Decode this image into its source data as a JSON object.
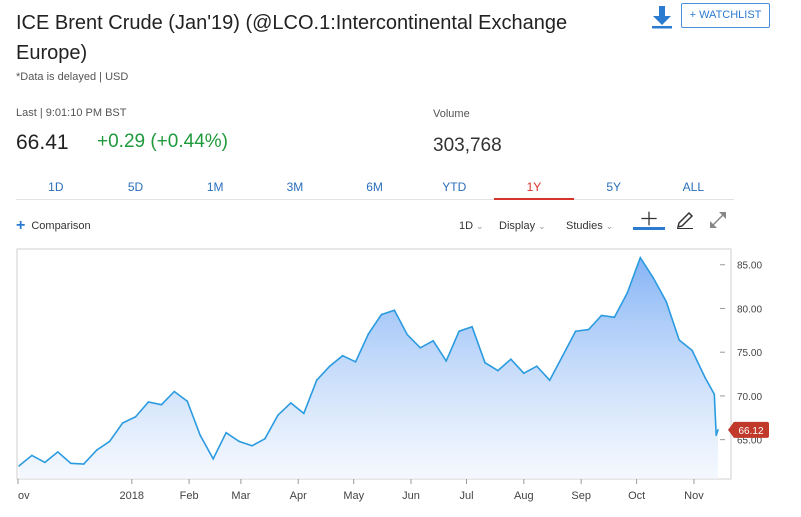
{
  "header": {
    "title": "ICE Brent Crude (Jan'19) (@LCO.1:Intercontinental Exchange Europe)",
    "watchlist_label": "+ WATCHLIST",
    "delayed_note": "*Data is delayed | USD"
  },
  "quote": {
    "last_label": "Last | 9:01:10 PM BST",
    "price": "66.41",
    "change": "+0.29 (+0.44%)",
    "volume_label": "Volume",
    "volume": "303,768"
  },
  "colors": {
    "accent": "#2b7bd1",
    "up": "#1f9a3c",
    "active_tab": "#d6332a",
    "line": "#2b9be0",
    "last_badge": "#c0392b"
  },
  "tabs": [
    {
      "label": "1D"
    },
    {
      "label": "5D"
    },
    {
      "label": "1M"
    },
    {
      "label": "3M"
    },
    {
      "label": "6M"
    },
    {
      "label": "YTD"
    },
    {
      "label": "1Y",
      "active": true
    },
    {
      "label": "5Y"
    },
    {
      "label": "ALL"
    }
  ],
  "toolbar": {
    "comparison_label": "Comparison",
    "interval_label": "1D",
    "display_label": "Display",
    "studies_label": "Studies",
    "icons": [
      "crosshair-icon",
      "pencil-icon",
      "expand-icon"
    ]
  },
  "chart_data": {
    "type": "area",
    "title": "",
    "xlabel": "",
    "ylabel": "",
    "x_tick_labels": [
      "ov",
      "2018",
      "Feb",
      "Mar",
      "Apr",
      "May",
      "Jun",
      "Jul",
      "Aug",
      "Sep",
      "Oct",
      "Nov"
    ],
    "y_tick_labels": [
      "85.00",
      "80.00",
      "75.00",
      "70.00",
      "65.00"
    ],
    "ylim": [
      60.5,
      86.8
    ],
    "last_value_label": "66.12",
    "grid": false,
    "series": [
      {
        "x": [
          "2017-11-01",
          "2017-11-08",
          "2017-11-15",
          "2017-11-22",
          "2017-11-29",
          "2017-12-06",
          "2017-12-13",
          "2017-12-20",
          "2017-12-27",
          "2018-01-03",
          "2018-01-10",
          "2018-01-17",
          "2018-01-24",
          "2018-01-31",
          "2018-02-07",
          "2018-02-14",
          "2018-02-21",
          "2018-02-28",
          "2018-03-07",
          "2018-03-14",
          "2018-03-21",
          "2018-03-28",
          "2018-04-04",
          "2018-04-11",
          "2018-04-18",
          "2018-04-25",
          "2018-05-02",
          "2018-05-09",
          "2018-05-16",
          "2018-05-23",
          "2018-05-30",
          "2018-06-06",
          "2018-06-13",
          "2018-06-20",
          "2018-06-27",
          "2018-07-04",
          "2018-07-11",
          "2018-07-18",
          "2018-07-25",
          "2018-08-01",
          "2018-08-08",
          "2018-08-15",
          "2018-08-22",
          "2018-08-29",
          "2018-09-05",
          "2018-09-12",
          "2018-09-19",
          "2018-09-26",
          "2018-10-03",
          "2018-10-10",
          "2018-10-17",
          "2018-10-24",
          "2018-10-31",
          "2018-11-07",
          "2018-11-12",
          "2018-11-13",
          "2018-11-14"
        ],
        "values": [
          62.0,
          63.2,
          62.4,
          63.6,
          62.3,
          62.2,
          63.8,
          64.8,
          66.9,
          67.6,
          69.3,
          69.0,
          70.5,
          69.4,
          65.5,
          62.8,
          65.8,
          64.8,
          64.3,
          65.1,
          67.8,
          69.2,
          68.0,
          71.8,
          73.4,
          74.6,
          73.9,
          77.1,
          79.3,
          79.8,
          77.0,
          75.5,
          76.3,
          74.0,
          77.4,
          77.9,
          73.8,
          72.9,
          74.2,
          72.6,
          73.4,
          71.8,
          74.6,
          77.4,
          77.6,
          79.2,
          79.0,
          81.8,
          85.8,
          83.5,
          80.8,
          76.4,
          75.2,
          72.1,
          70.2,
          65.5,
          66.12
        ]
      }
    ]
  }
}
